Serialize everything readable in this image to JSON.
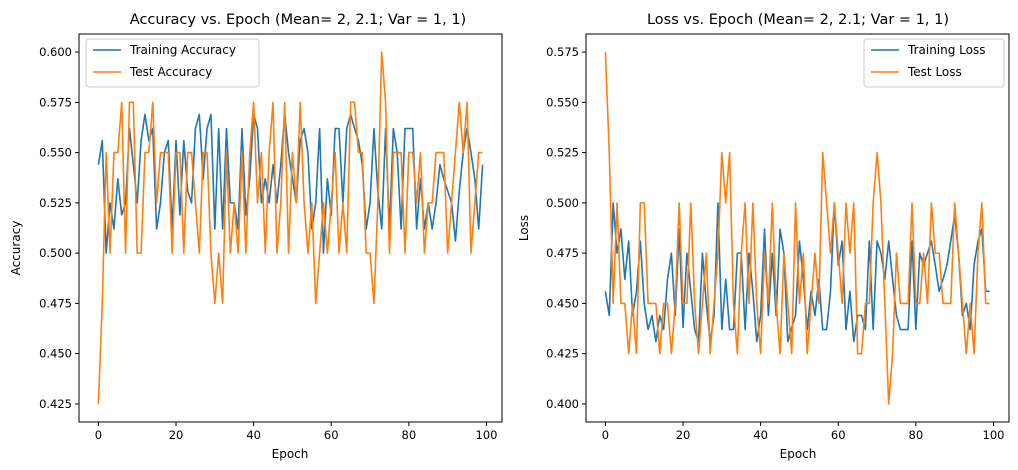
{
  "chart_data": [
    {
      "type": "line",
      "title": "Accuracy vs. Epoch (Mean=  2, 2.1; Var = 1, 1)",
      "xlabel": "Epoch",
      "ylabel": "Accuracy",
      "xlim": [
        -5,
        104
      ],
      "ylim": [
        0.416,
        0.609
      ],
      "xticks": [
        0,
        20,
        40,
        60,
        80,
        100
      ],
      "yticks": [
        0.425,
        0.45,
        0.475,
        0.5,
        0.525,
        0.55,
        0.575,
        0.6
      ],
      "ytick_labels": [
        "0.425",
        "0.450",
        "0.475",
        "0.500",
        "0.525",
        "0.550",
        "0.575",
        "0.600"
      ],
      "legend_position": "upper-left",
      "series": [
        {
          "name": "Training Accuracy",
          "color": "#1f77b4",
          "x": [
            0,
            1,
            2,
            3,
            4,
            5,
            6,
            7,
            8,
            9,
            10,
            11,
            12,
            13,
            14,
            15,
            16,
            17,
            18,
            19,
            20,
            21,
            22,
            23,
            24,
            25,
            26,
            27,
            28,
            29,
            30,
            31,
            32,
            33,
            34,
            35,
            36,
            37,
            38,
            39,
            40,
            41,
            42,
            43,
            44,
            45,
            46,
            47,
            48,
            49,
            50,
            51,
            52,
            53,
            54,
            55,
            56,
            57,
            58,
            59,
            60,
            61,
            62,
            63,
            64,
            65,
            66,
            67,
            68,
            69,
            70,
            71,
            72,
            73,
            74,
            75,
            76,
            77,
            78,
            79,
            80,
            81,
            82,
            83,
            84,
            85,
            86,
            87,
            88,
            89,
            90,
            91,
            92,
            93,
            94,
            95,
            96,
            97,
            98,
            99
          ],
          "values": [
            0.544,
            0.556,
            0.5,
            0.525,
            0.512,
            0.537,
            0.519,
            0.525,
            0.562,
            0.544,
            0.525,
            0.556,
            0.569,
            0.556,
            0.562,
            0.512,
            0.525,
            0.55,
            0.556,
            0.512,
            0.556,
            0.519,
            0.556,
            0.531,
            0.525,
            0.562,
            0.569,
            0.537,
            0.562,
            0.569,
            0.512,
            0.562,
            0.512,
            0.562,
            0.525,
            0.525,
            0.512,
            0.562,
            0.519,
            0.537,
            0.569,
            0.562,
            0.525,
            0.537,
            0.525,
            0.544,
            0.525,
            0.544,
            0.569,
            0.55,
            0.537,
            0.525,
            0.556,
            0.562,
            0.55,
            0.512,
            0.525,
            0.562,
            0.5,
            0.537,
            0.519,
            0.562,
            0.562,
            0.525,
            0.562,
            0.569,
            0.562,
            0.556,
            0.544,
            0.512,
            0.525,
            0.562,
            0.531,
            0.512,
            0.562,
            0.512,
            0.562,
            0.55,
            0.512,
            0.562,
            0.562,
            0.562,
            0.512,
            0.537,
            0.512,
            0.525,
            0.512,
            0.525,
            0.544,
            0.537,
            0.531,
            0.525,
            0.506,
            0.531,
            0.55,
            0.562,
            0.55,
            0.537,
            0.512,
            0.544
          ]
        },
        {
          "name": "Test Accuracy",
          "color": "#ff7f0e",
          "x": [
            0,
            1,
            2,
            3,
            4,
            5,
            6,
            7,
            8,
            9,
            10,
            11,
            12,
            13,
            14,
            15,
            16,
            17,
            18,
            19,
            20,
            21,
            22,
            23,
            24,
            25,
            26,
            27,
            28,
            29,
            30,
            31,
            32,
            33,
            34,
            35,
            36,
            37,
            38,
            39,
            40,
            41,
            42,
            43,
            44,
            45,
            46,
            47,
            48,
            49,
            50,
            51,
            52,
            53,
            54,
            55,
            56,
            57,
            58,
            59,
            60,
            61,
            62,
            63,
            64,
            65,
            66,
            67,
            68,
            69,
            70,
            71,
            72,
            73,
            74,
            75,
            76,
            77,
            78,
            79,
            80,
            81,
            82,
            83,
            84,
            85,
            86,
            87,
            88,
            89,
            90,
            91,
            92,
            93,
            94,
            95,
            96,
            97,
            98,
            99
          ],
          "values": [
            0.425,
            0.475,
            0.55,
            0.5,
            0.55,
            0.55,
            0.575,
            0.5,
            0.575,
            0.575,
            0.5,
            0.5,
            0.55,
            0.55,
            0.575,
            0.525,
            0.55,
            0.55,
            0.55,
            0.5,
            0.55,
            0.55,
            0.5,
            0.55,
            0.55,
            0.525,
            0.5,
            0.55,
            0.55,
            0.5,
            0.475,
            0.5,
            0.475,
            0.55,
            0.5,
            0.525,
            0.5,
            0.55,
            0.5,
            0.55,
            0.575,
            0.525,
            0.55,
            0.5,
            0.55,
            0.575,
            0.5,
            0.525,
            0.575,
            0.5,
            0.55,
            0.525,
            0.575,
            0.525,
            0.5,
            0.525,
            0.475,
            0.5,
            0.525,
            0.5,
            0.525,
            0.55,
            0.5,
            0.525,
            0.5,
            0.575,
            0.575,
            0.55,
            0.55,
            0.5,
            0.5,
            0.475,
            0.525,
            0.6,
            0.575,
            0.5,
            0.55,
            0.55,
            0.55,
            0.5,
            0.55,
            0.55,
            0.525,
            0.55,
            0.5,
            0.525,
            0.525,
            0.55,
            0.55,
            0.55,
            0.5,
            0.525,
            0.55,
            0.575,
            0.55,
            0.575,
            0.5,
            0.525,
            0.55,
            0.55
          ]
        }
      ]
    },
    {
      "type": "line",
      "title": "Loss vs. Epoch (Mean=  2, 2.1; Var = 1, 1)",
      "xlabel": "Epoch",
      "ylabel": "Loss",
      "xlim": [
        -5,
        104
      ],
      "ylim": [
        0.391,
        0.584
      ],
      "xticks": [
        0,
        20,
        40,
        60,
        80,
        100
      ],
      "yticks": [
        0.4,
        0.425,
        0.45,
        0.475,
        0.5,
        0.525,
        0.55,
        0.575
      ],
      "ytick_labels": [
        "0.400",
        "0.425",
        "0.450",
        "0.475",
        "0.500",
        "0.525",
        "0.550",
        "0.575"
      ],
      "legend_position": "upper-right",
      "series": [
        {
          "name": "Training Loss",
          "color": "#1f77b4",
          "x": [
            0,
            1,
            2,
            3,
            4,
            5,
            6,
            7,
            8,
            9,
            10,
            11,
            12,
            13,
            14,
            15,
            16,
            17,
            18,
            19,
            20,
            21,
            22,
            23,
            24,
            25,
            26,
            27,
            28,
            29,
            30,
            31,
            32,
            33,
            34,
            35,
            36,
            37,
            38,
            39,
            40,
            41,
            42,
            43,
            44,
            45,
            46,
            47,
            48,
            49,
            50,
            51,
            52,
            53,
            54,
            55,
            56,
            57,
            58,
            59,
            60,
            61,
            62,
            63,
            64,
            65,
            66,
            67,
            68,
            69,
            70,
            71,
            72,
            73,
            74,
            75,
            76,
            77,
            78,
            79,
            80,
            81,
            82,
            83,
            84,
            85,
            86,
            87,
            88,
            89,
            90,
            91,
            92,
            93,
            94,
            95,
            96,
            97,
            98,
            99
          ],
          "values": [
            0.456,
            0.444,
            0.5,
            0.475,
            0.487,
            0.462,
            0.481,
            0.444,
            0.456,
            0.481,
            0.45,
            0.437,
            0.444,
            0.431,
            0.444,
            0.437,
            0.462,
            0.475,
            0.444,
            0.487,
            0.438,
            0.475,
            0.456,
            0.437,
            0.431,
            0.475,
            0.45,
            0.431,
            0.444,
            0.5,
            0.437,
            0.462,
            0.437,
            0.437,
            0.475,
            0.475,
            0.437,
            0.475,
            0.456,
            0.431,
            0.444,
            0.487,
            0.444,
            0.475,
            0.444,
            0.487,
            0.475,
            0.431,
            0.438,
            0.444,
            0.481,
            0.462,
            0.437,
            0.456,
            0.444,
            0.462,
            0.437,
            0.437,
            0.456,
            0.5,
            0.469,
            0.481,
            0.437,
            0.456,
            0.431,
            0.444,
            0.444,
            0.437,
            0.481,
            0.437,
            0.481,
            0.475,
            0.462,
            0.481,
            0.462,
            0.444,
            0.437,
            0.437,
            0.437,
            0.481,
            0.437,
            0.475,
            0.469,
            0.475,
            0.481,
            0.469,
            0.456,
            0.462,
            0.469,
            0.481,
            0.494,
            0.475,
            0.444,
            0.45,
            0.437,
            0.469,
            0.481,
            0.487,
            0.456,
            0.456
          ]
        },
        {
          "name": "Test Loss",
          "color": "#ff7f0e",
          "x": [
            0,
            1,
            2,
            3,
            4,
            5,
            6,
            7,
            8,
            9,
            10,
            11,
            12,
            13,
            14,
            15,
            16,
            17,
            18,
            19,
            20,
            21,
            22,
            23,
            24,
            25,
            26,
            27,
            28,
            29,
            30,
            31,
            32,
            33,
            34,
            35,
            36,
            37,
            38,
            39,
            40,
            41,
            42,
            43,
            44,
            45,
            46,
            47,
            48,
            49,
            50,
            51,
            52,
            53,
            54,
            55,
            56,
            57,
            58,
            59,
            60,
            61,
            62,
            63,
            64,
            65,
            66,
            67,
            68,
            69,
            70,
            71,
            72,
            73,
            74,
            75,
            76,
            77,
            78,
            79,
            80,
            81,
            82,
            83,
            84,
            85,
            86,
            87,
            88,
            89,
            90,
            91,
            92,
            93,
            94,
            95,
            96,
            97,
            98,
            99
          ],
          "values": [
            0.575,
            0.525,
            0.45,
            0.5,
            0.45,
            0.45,
            0.425,
            0.45,
            0.425,
            0.5,
            0.5,
            0.45,
            0.45,
            0.45,
            0.425,
            0.45,
            0.45,
            0.425,
            0.45,
            0.5,
            0.45,
            0.45,
            0.5,
            0.45,
            0.425,
            0.45,
            0.475,
            0.425,
            0.45,
            0.475,
            0.525,
            0.5,
            0.525,
            0.45,
            0.425,
            0.475,
            0.5,
            0.45,
            0.5,
            0.45,
            0.425,
            0.475,
            0.45,
            0.5,
            0.45,
            0.425,
            0.475,
            0.45,
            0.425,
            0.5,
            0.45,
            0.475,
            0.425,
            0.45,
            0.475,
            0.45,
            0.525,
            0.5,
            0.475,
            0.5,
            0.475,
            0.45,
            0.5,
            0.475,
            0.5,
            0.425,
            0.425,
            0.45,
            0.45,
            0.5,
            0.525,
            0.5,
            0.45,
            0.4,
            0.425,
            0.475,
            0.45,
            0.45,
            0.45,
            0.5,
            0.45,
            0.45,
            0.475,
            0.45,
            0.5,
            0.475,
            0.475,
            0.45,
            0.45,
            0.45,
            0.5,
            0.475,
            0.45,
            0.425,
            0.45,
            0.425,
            0.475,
            0.5,
            0.45,
            0.45
          ]
        }
      ]
    }
  ]
}
